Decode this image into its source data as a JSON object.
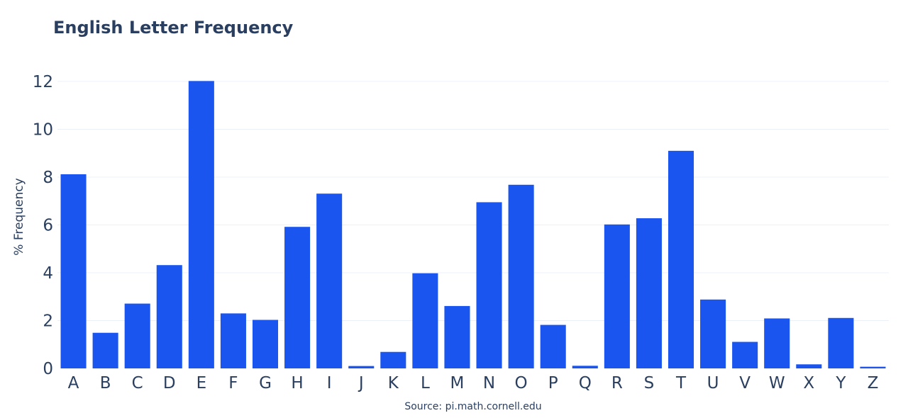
{
  "chart_data": {
    "type": "bar",
    "title": "English Letter Frequency",
    "xlabel": "",
    "ylabel": "% Frequency",
    "annotation": "Source: pi.math.cornell.edu",
    "categories": [
      "A",
      "B",
      "C",
      "D",
      "E",
      "F",
      "G",
      "H",
      "I",
      "J",
      "K",
      "L",
      "M",
      "N",
      "O",
      "P",
      "Q",
      "R",
      "S",
      "T",
      "U",
      "V",
      "W",
      "X",
      "Y",
      "Z"
    ],
    "values": [
      8.12,
      1.49,
      2.71,
      4.32,
      12.02,
      2.3,
      2.03,
      5.92,
      7.31,
      0.1,
      0.69,
      3.98,
      2.61,
      6.95,
      7.68,
      1.82,
      0.11,
      6.02,
      6.28,
      9.1,
      2.88,
      1.11,
      2.09,
      0.17,
      2.11,
      0.07
    ],
    "yticks": [
      "0",
      "2",
      "4",
      "6",
      "8",
      "10",
      "12"
    ],
    "ylim": [
      0,
      12.5
    ],
    "grid": true,
    "bar_color": "#1a55f0"
  }
}
